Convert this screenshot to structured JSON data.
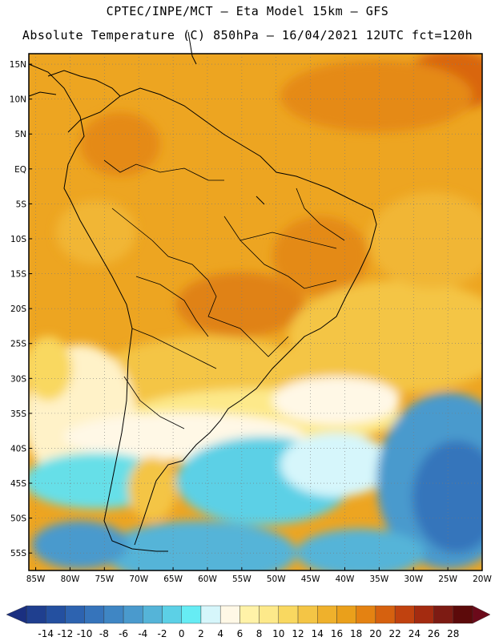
{
  "header": {
    "line1": "CPTEC/INPE/MCT —  Eta Model 15km — GFS",
    "line2": "Absolute Temperature (C) 850hPa — 16/04/2021 12UTC fct=120h"
  },
  "map": {
    "lat_labels": [
      "15N",
      "10N",
      "5N",
      "EQ",
      "5S",
      "10S",
      "15S",
      "20S",
      "25S",
      "30S",
      "35S",
      "40S",
      "45S",
      "50S",
      "55S"
    ],
    "lon_labels": [
      "85W",
      "80W",
      "75W",
      "70W",
      "65W",
      "60W",
      "55W",
      "50W",
      "45W",
      "40W",
      "35W",
      "30W",
      "25W",
      "20W"
    ],
    "lat_range": [
      -57.5,
      16.5
    ],
    "lon_range": [
      -86,
      -20
    ],
    "field": "temperature-850hPa",
    "gridlines": true
  },
  "colorbar": {
    "labels": [
      "-14",
      "-12",
      "-10",
      "-8",
      "-6",
      "-4",
      "-2",
      "0",
      "2",
      "4",
      "6",
      "8",
      "10",
      "12",
      "14",
      "16",
      "18",
      "20",
      "22",
      "24",
      "26",
      "28"
    ],
    "colors": [
      "#1f3f8f",
      "#2450a0",
      "#2d63b0",
      "#3674bb",
      "#3f86c4",
      "#4a9acd",
      "#55b4d8",
      "#5cd0e6",
      "#66ecf4",
      "#d6f6fb",
      "#fff8e6",
      "#fff2a8",
      "#fde98a",
      "#f9d860",
      "#f4c545",
      "#efb12c",
      "#eaa01b",
      "#e48212",
      "#d6610f",
      "#c1420f",
      "#a42b10",
      "#7d1b13",
      "#5c0a0a"
    ]
  }
}
